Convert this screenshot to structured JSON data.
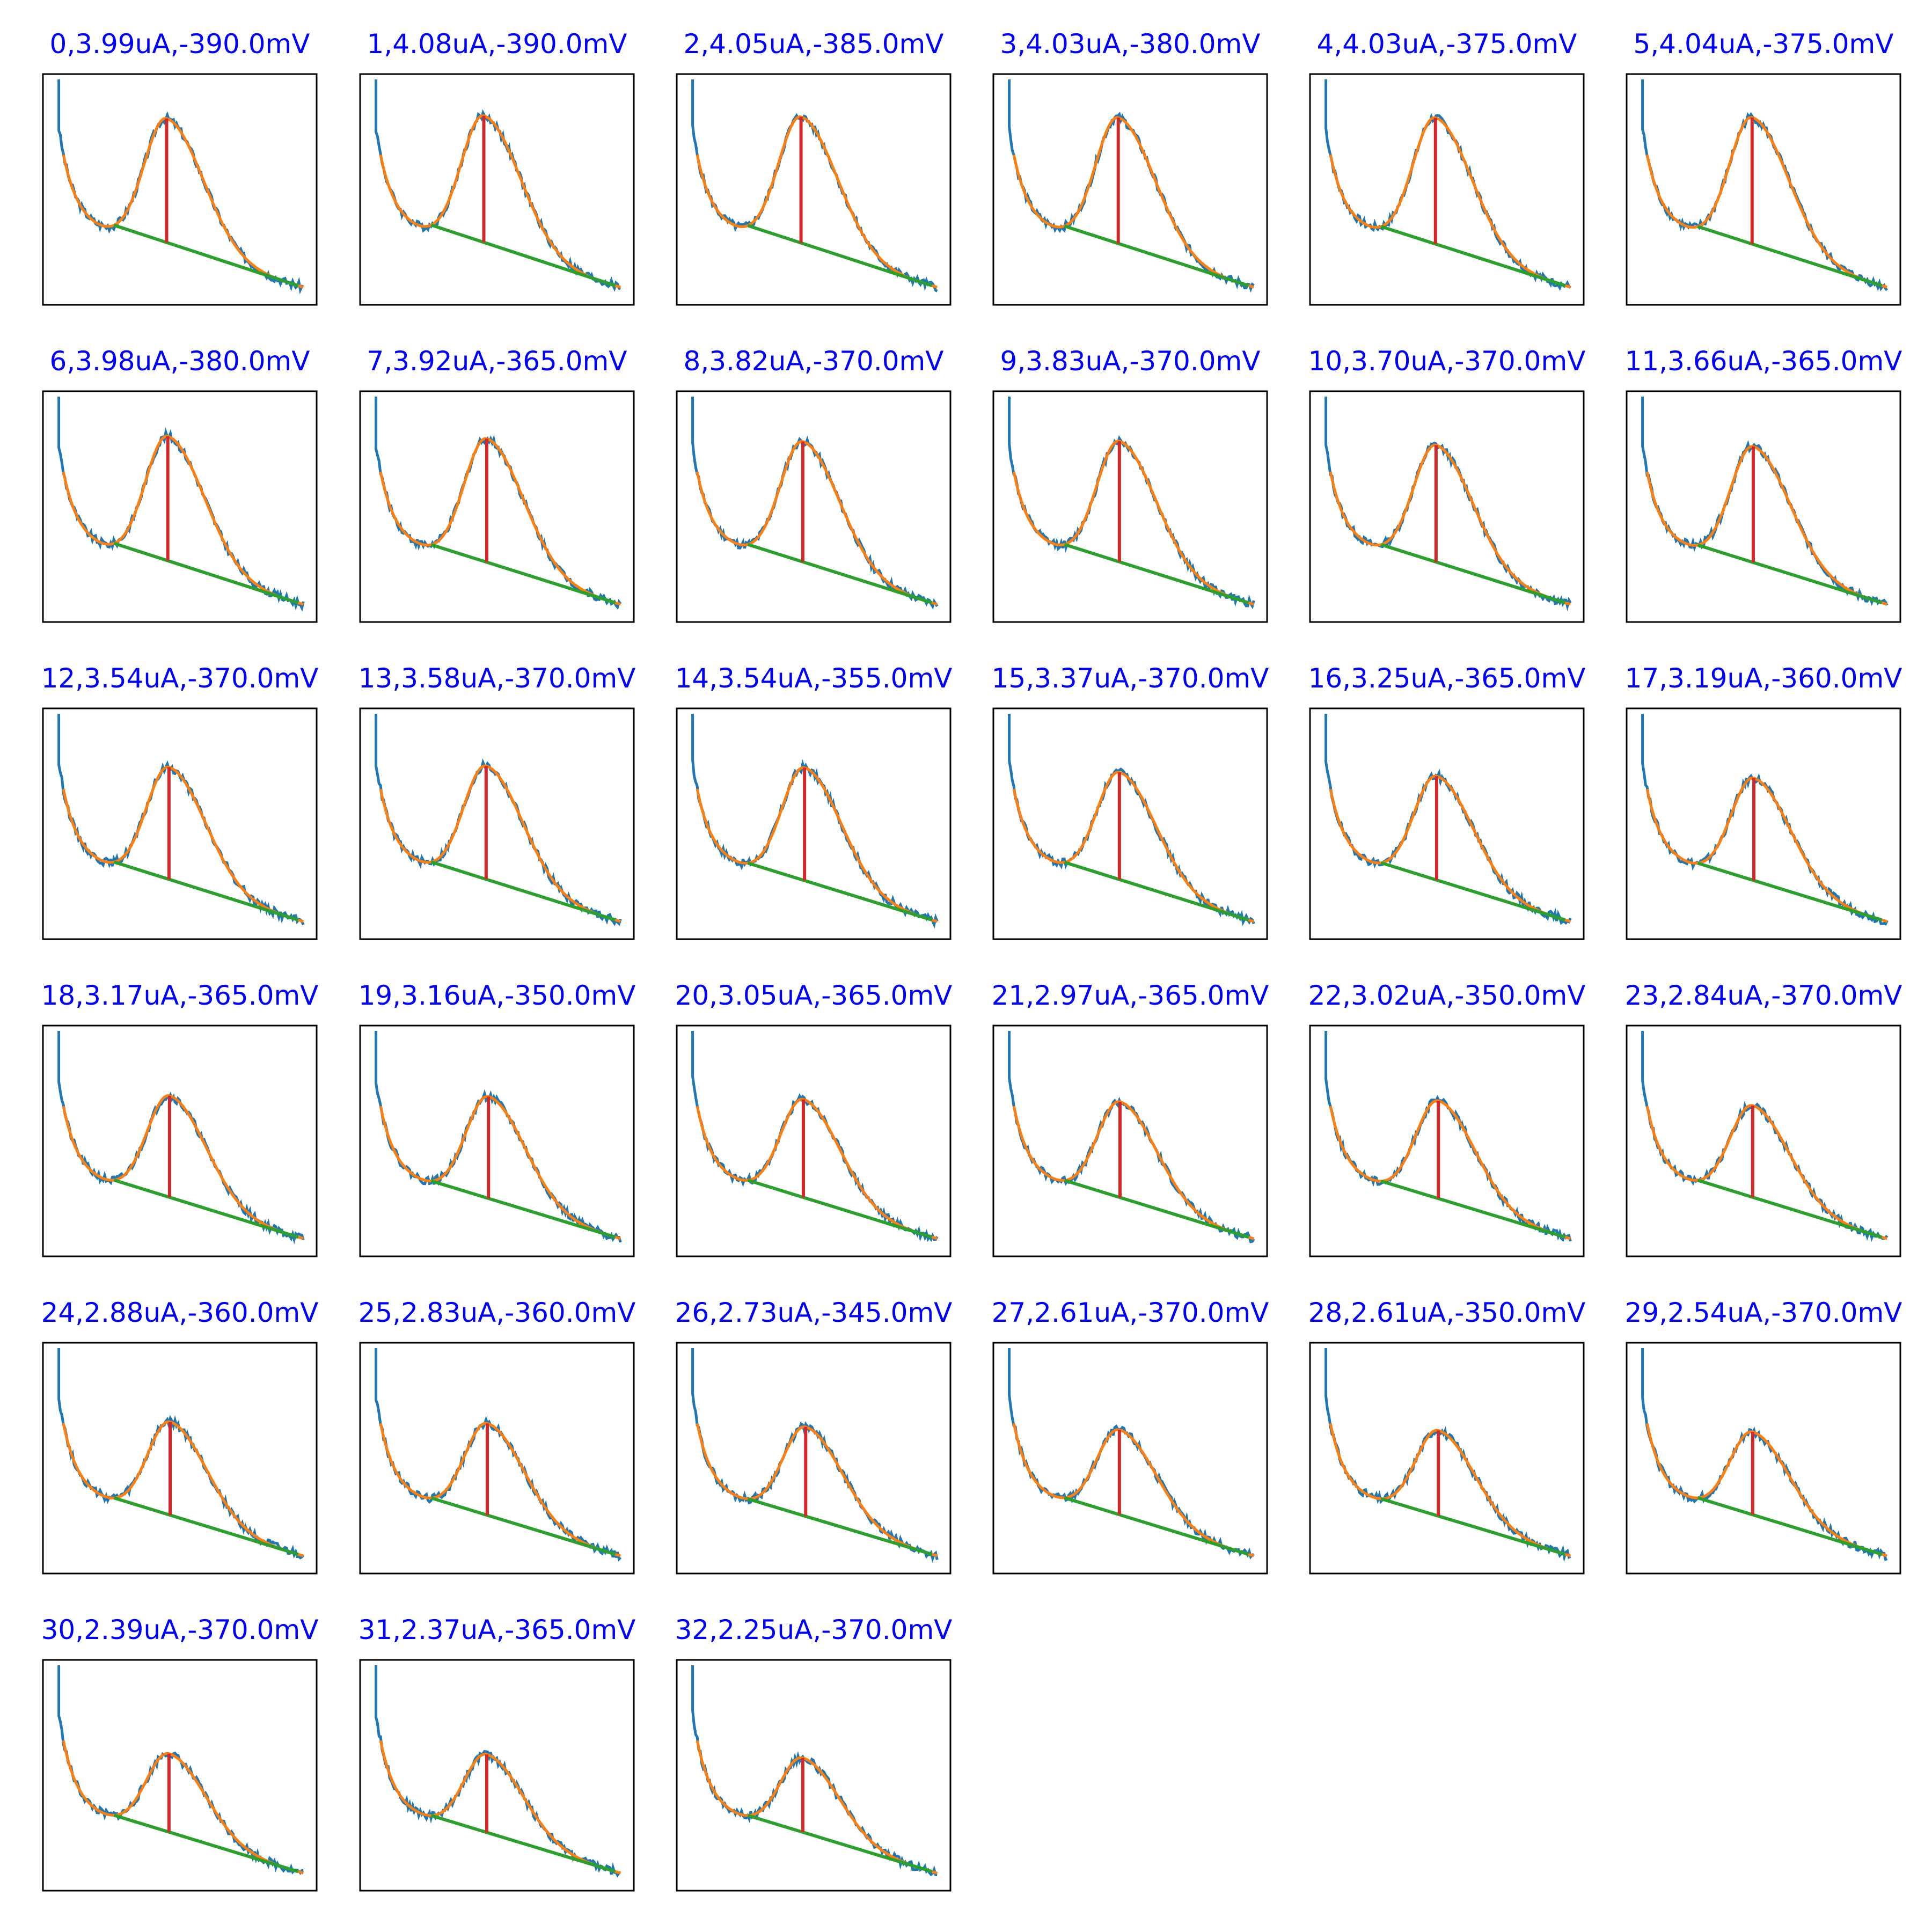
{
  "colors": {
    "raw_signal": "#1f77b4",
    "smoothed_signal": "#ff7f0e",
    "baseline": "#2ca02c",
    "peak_marker": "#d62728",
    "title_text": "#0000ff",
    "axes_frame": "#000000"
  },
  "chart_data": {
    "type": "line",
    "layout": "small-multiples",
    "grid": false,
    "axis_ticks": false,
    "series_per_panel": [
      "raw",
      "smoothed",
      "baseline",
      "peak height"
    ],
    "panels": [
      {
        "index": 0,
        "title": "0,3.99uA,-390.0mV",
        "peak_current_uA": 3.99,
        "peak_potential_mV": -390.0
      },
      {
        "index": 1,
        "title": "1,4.08uA,-390.0mV",
        "peak_current_uA": 4.08,
        "peak_potential_mV": -390.0
      },
      {
        "index": 2,
        "title": "2,4.05uA,-385.0mV",
        "peak_current_uA": 4.05,
        "peak_potential_mV": -385.0
      },
      {
        "index": 3,
        "title": "3,4.03uA,-380.0mV",
        "peak_current_uA": 4.03,
        "peak_potential_mV": -380.0
      },
      {
        "index": 4,
        "title": "4,4.03uA,-375.0mV",
        "peak_current_uA": 4.03,
        "peak_potential_mV": -375.0
      },
      {
        "index": 5,
        "title": "5,4.04uA,-375.0mV",
        "peak_current_uA": 4.04,
        "peak_potential_mV": -375.0
      },
      {
        "index": 6,
        "title": "6,3.98uA,-380.0mV",
        "peak_current_uA": 3.98,
        "peak_potential_mV": -380.0
      },
      {
        "index": 7,
        "title": "7,3.92uA,-365.0mV",
        "peak_current_uA": 3.92,
        "peak_potential_mV": -365.0
      },
      {
        "index": 8,
        "title": "8,3.82uA,-370.0mV",
        "peak_current_uA": 3.82,
        "peak_potential_mV": -370.0
      },
      {
        "index": 9,
        "title": "9,3.83uA,-370.0mV",
        "peak_current_uA": 3.83,
        "peak_potential_mV": -370.0
      },
      {
        "index": 10,
        "title": "10,3.70uA,-370.0mV",
        "peak_current_uA": 3.7,
        "peak_potential_mV": -370.0
      },
      {
        "index": 11,
        "title": "11,3.66uA,-365.0mV",
        "peak_current_uA": 3.66,
        "peak_potential_mV": -365.0
      },
      {
        "index": 12,
        "title": "12,3.54uA,-370.0mV",
        "peak_current_uA": 3.54,
        "peak_potential_mV": -370.0
      },
      {
        "index": 13,
        "title": "13,3.58uA,-370.0mV",
        "peak_current_uA": 3.58,
        "peak_potential_mV": -370.0
      },
      {
        "index": 14,
        "title": "14,3.54uA,-355.0mV",
        "peak_current_uA": 3.54,
        "peak_potential_mV": -355.0
      },
      {
        "index": 15,
        "title": "15,3.37uA,-370.0mV",
        "peak_current_uA": 3.37,
        "peak_potential_mV": -370.0
      },
      {
        "index": 16,
        "title": "16,3.25uA,-365.0mV",
        "peak_current_uA": 3.25,
        "peak_potential_mV": -365.0
      },
      {
        "index": 17,
        "title": "17,3.19uA,-360.0mV",
        "peak_current_uA": 3.19,
        "peak_potential_mV": -360.0
      },
      {
        "index": 18,
        "title": "18,3.17uA,-365.0mV",
        "peak_current_uA": 3.17,
        "peak_potential_mV": -365.0
      },
      {
        "index": 19,
        "title": "19,3.16uA,-350.0mV",
        "peak_current_uA": 3.16,
        "peak_potential_mV": -350.0
      },
      {
        "index": 20,
        "title": "20,3.05uA,-365.0mV",
        "peak_current_uA": 3.05,
        "peak_potential_mV": -365.0
      },
      {
        "index": 21,
        "title": "21,2.97uA,-365.0mV",
        "peak_current_uA": 2.97,
        "peak_potential_mV": -365.0
      },
      {
        "index": 22,
        "title": "22,3.02uA,-350.0mV",
        "peak_current_uA": 3.02,
        "peak_potential_mV": -350.0
      },
      {
        "index": 23,
        "title": "23,2.84uA,-370.0mV",
        "peak_current_uA": 2.84,
        "peak_potential_mV": -370.0
      },
      {
        "index": 24,
        "title": "24,2.88uA,-360.0mV",
        "peak_current_uA": 2.88,
        "peak_potential_mV": -360.0
      },
      {
        "index": 25,
        "title": "25,2.83uA,-360.0mV",
        "peak_current_uA": 2.83,
        "peak_potential_mV": -360.0
      },
      {
        "index": 26,
        "title": "26,2.73uA,-345.0mV",
        "peak_current_uA": 2.73,
        "peak_potential_mV": -345.0
      },
      {
        "index": 27,
        "title": "27,2.61uA,-370.0mV",
        "peak_current_uA": 2.61,
        "peak_potential_mV": -370.0
      },
      {
        "index": 28,
        "title": "28,2.61uA,-350.0mV",
        "peak_current_uA": 2.61,
        "peak_potential_mV": -350.0
      },
      {
        "index": 29,
        "title": "29,2.54uA,-370.0mV",
        "peak_current_uA": 2.54,
        "peak_potential_mV": -370.0
      },
      {
        "index": 30,
        "title": "30,2.39uA,-370.0mV",
        "peak_current_uA": 2.39,
        "peak_potential_mV": -370.0
      },
      {
        "index": 31,
        "title": "31,2.37uA,-365.0mV",
        "peak_current_uA": 2.37,
        "peak_potential_mV": -365.0
      },
      {
        "index": 32,
        "title": "32,2.25uA,-370.0mV",
        "peak_current_uA": 2.25,
        "peak_potential_mV": -370.0
      }
    ]
  }
}
